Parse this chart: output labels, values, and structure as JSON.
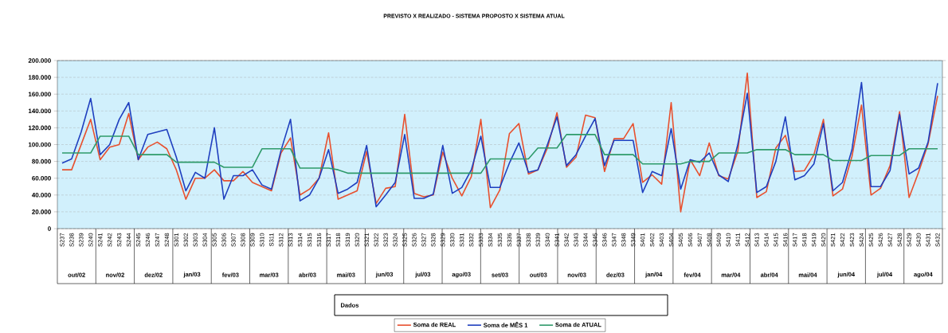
{
  "chart_data": {
    "type": "line",
    "title": "PREVISTO X REALIZADO - SISTEMA PROPOSTO X SISTEMA ATUAL",
    "categories": [
      "S237",
      "S238",
      "S239",
      "S240",
      "S241",
      "S242",
      "S243",
      "S244",
      "S245",
      "S246",
      "S247",
      "S248",
      "S301",
      "S302",
      "S303",
      "S304",
      "S305",
      "S306",
      "S307",
      "S308",
      "S309",
      "S310",
      "S311",
      "S312",
      "S313",
      "S314",
      "S315",
      "S316",
      "S317",
      "S318",
      "S319",
      "S320",
      "S321",
      "S322",
      "S323",
      "S324",
      "S325",
      "S326",
      "S327",
      "S328",
      "S329",
      "S330",
      "S331",
      "S332",
      "S333",
      "S334",
      "S335",
      "S336",
      "S337",
      "S338",
      "S339",
      "S340",
      "S341",
      "S342",
      "S343",
      "S344",
      "S345",
      "S346",
      "S347",
      "S348",
      "S349",
      "S401",
      "S402",
      "S403",
      "S404",
      "S405",
      "S406",
      "S407",
      "S408",
      "S409",
      "S410",
      "S411",
      "S412",
      "S413",
      "S414",
      "S415",
      "S416",
      "S417",
      "S418",
      "S419",
      "S420",
      "S421",
      "S422",
      "S423",
      "S424",
      "S425",
      "S426",
      "S427",
      "S428",
      "S429",
      "S430",
      "S431",
      "S432"
    ],
    "series": [
      {
        "name": "Soma de REAL",
        "color": "#e8502e",
        "values": [
          70000,
          70000,
          100000,
          130000,
          82000,
          97000,
          100000,
          137000,
          82000,
          97000,
          103000,
          95000,
          70000,
          35000,
          60000,
          60000,
          70000,
          57000,
          57000,
          68000,
          55000,
          50000,
          45000,
          90000,
          108000,
          40000,
          47000,
          60000,
          114000,
          35000,
          40000,
          45000,
          92000,
          30000,
          48000,
          50000,
          136000,
          42000,
          38000,
          40000,
          91000,
          60000,
          39000,
          62000,
          130000,
          25000,
          46000,
          113000,
          125000,
          65000,
          70000,
          96000,
          138000,
          73000,
          85000,
          135000,
          132000,
          68000,
          107000,
          107000,
          125000,
          55000,
          64000,
          53000,
          150000,
          20000,
          82000,
          63000,
          102000,
          63000,
          59000,
          92000,
          185000,
          37000,
          44000,
          96000,
          111000,
          68000,
          69000,
          88000,
          130000,
          39000,
          47000,
          86000,
          147000,
          40000,
          48000,
          75000,
          139000,
          37000,
          67000,
          101000,
          158000
        ]
      },
      {
        "name": "Soma de MÊS 1",
        "color": "#1f3fbf",
        "values": [
          78000,
          83000,
          115000,
          155000,
          88000,
          100000,
          130000,
          150000,
          82000,
          112000,
          115000,
          118000,
          85000,
          45000,
          67000,
          60000,
          120000,
          35000,
          63000,
          63000,
          70000,
          52000,
          47000,
          93000,
          130000,
          33000,
          40000,
          60000,
          94000,
          42000,
          47000,
          55000,
          99000,
          26000,
          40000,
          55000,
          112000,
          36000,
          36000,
          41000,
          99000,
          42000,
          49000,
          70000,
          110000,
          49000,
          49000,
          78000,
          102000,
          67000,
          70000,
          100000,
          133000,
          75000,
          88000,
          110000,
          131000,
          75000,
          105000,
          105000,
          105000,
          43000,
          68000,
          63000,
          119000,
          47000,
          82000,
          79000,
          90000,
          64000,
          56000,
          100000,
          161000,
          43000,
          50000,
          80000,
          133000,
          58000,
          63000,
          77000,
          125000,
          45000,
          55000,
          94000,
          174000,
          50000,
          50000,
          69000,
          136000,
          65000,
          72000,
          103000,
          173000
        ]
      },
      {
        "name": "Soma de ATUAL",
        "color": "#2e9a6a",
        "values": [
          90000,
          90000,
          90000,
          90000,
          110000,
          110000,
          110000,
          110000,
          88000,
          88000,
          88000,
          88000,
          79000,
          79000,
          79000,
          79000,
          79000,
          73000,
          73000,
          73000,
          73000,
          95000,
          95000,
          95000,
          95000,
          72000,
          72000,
          72000,
          72000,
          70000,
          66000,
          66000,
          66000,
          66000,
          66000,
          66000,
          66000,
          66000,
          66000,
          66000,
          66000,
          66000,
          66000,
          66000,
          66000,
          83000,
          83000,
          83000,
          83000,
          83000,
          96000,
          96000,
          96000,
          112000,
          112000,
          112000,
          112000,
          88000,
          88000,
          88000,
          88000,
          77000,
          77000,
          77000,
          77000,
          77000,
          80000,
          80000,
          80000,
          90000,
          90000,
          90000,
          90000,
          94000,
          94000,
          94000,
          94000,
          88000,
          88000,
          88000,
          88000,
          81000,
          81000,
          81000,
          81000,
          87000,
          87000,
          87000,
          87000,
          95000,
          95000,
          95000,
          95000
        ]
      }
    ],
    "ylim": [
      0,
      200000
    ],
    "yticks": [
      0,
      {
        "value": 20000,
        "label": "20.000"
      },
      {
        "value": 40000,
        "label": "40.000"
      },
      {
        "value": 60000,
        "label": "60.000"
      },
      {
        "value": 80000,
        "label": "80.000"
      },
      {
        "value": 100000,
        "label": "100.000"
      },
      {
        "value": 120000,
        "label": "120.000"
      },
      {
        "value": 140000,
        "label": "140.000"
      },
      {
        "value": 160000,
        "label": "160.000"
      },
      {
        "value": 180000,
        "label": "180.000"
      },
      {
        "value": 200000,
        "label": "200.000"
      }
    ],
    "grid": "y",
    "legend": "bottom",
    "legend_title": "Dados",
    "annotations": [
      "out/02",
      "nov/02",
      "dez/02",
      "jan/03",
      "fev/03",
      "mar/03",
      "abr/03",
      "mai/03",
      "jun/03",
      "jul/03",
      "ago/03",
      "set/03",
      "out/03",
      "nov/03",
      "dez/03",
      "jan/04",
      "fev/04",
      "mar/04",
      "abr/04",
      "mai/04",
      "jun/04",
      "jul/04",
      "ago/04"
    ]
  }
}
